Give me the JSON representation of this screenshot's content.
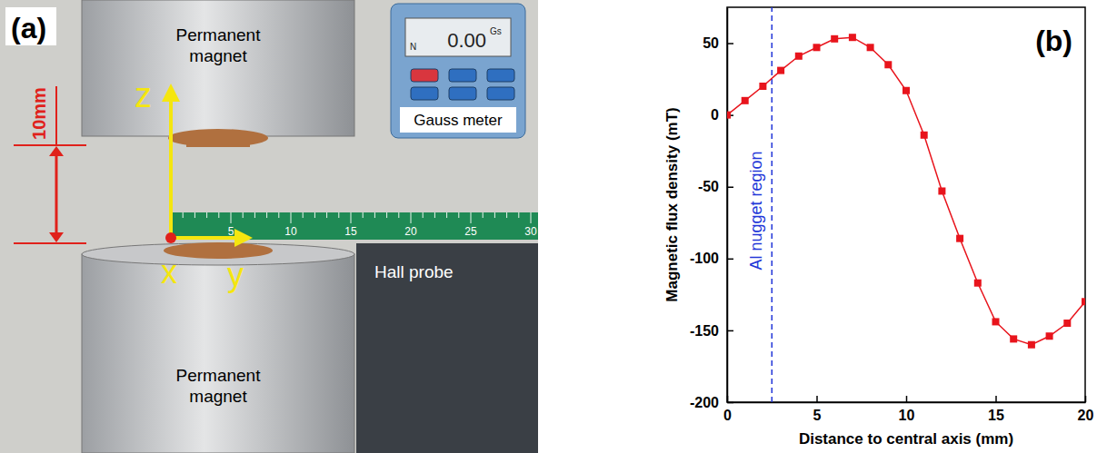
{
  "panel_a": {
    "label": "(a)",
    "top_magnet": "Permanent magnet",
    "bottom_magnet": "Permanent magnet",
    "gap": "10mm",
    "axes": {
      "z": "z",
      "y": "y",
      "x": "x"
    },
    "gauss_meter": {
      "display": "0.00",
      "unit": "Gs",
      "pole": "N",
      "label": "Gauss meter"
    },
    "hall_probe": "Hall probe",
    "ruler_ticks": [
      5,
      10,
      15,
      20,
      25,
      30
    ]
  },
  "chart_data": {
    "type": "line",
    "panel_label": "(b)",
    "x_label": "Distance to central axis (mm)",
    "y_label": "Magnetic flux density (mT)",
    "x": [
      0,
      1,
      2,
      3,
      4,
      5,
      6,
      7,
      8,
      9,
      10,
      11,
      12,
      13,
      14,
      15,
      16,
      17,
      18,
      19,
      20
    ],
    "values": [
      0,
      10,
      20,
      31,
      41,
      47,
      53,
      54,
      47,
      35,
      17,
      -14,
      -53,
      -86,
      -117,
      -144,
      -156,
      -160,
      -154,
      -145,
      -130
    ],
    "color": "#e8141c",
    "marker": "square",
    "xlim": [
      0,
      20
    ],
    "ylim": [
      -200,
      75
    ],
    "xticks": [
      0,
      5,
      10,
      15,
      20
    ],
    "yticks": [
      -200,
      -150,
      -100,
      -50,
      0,
      50
    ],
    "grid": false,
    "annotations": [
      {
        "text": "Al nugget region",
        "x": 2.5,
        "color": "#2236d8",
        "line_style": "dashed"
      }
    ]
  }
}
